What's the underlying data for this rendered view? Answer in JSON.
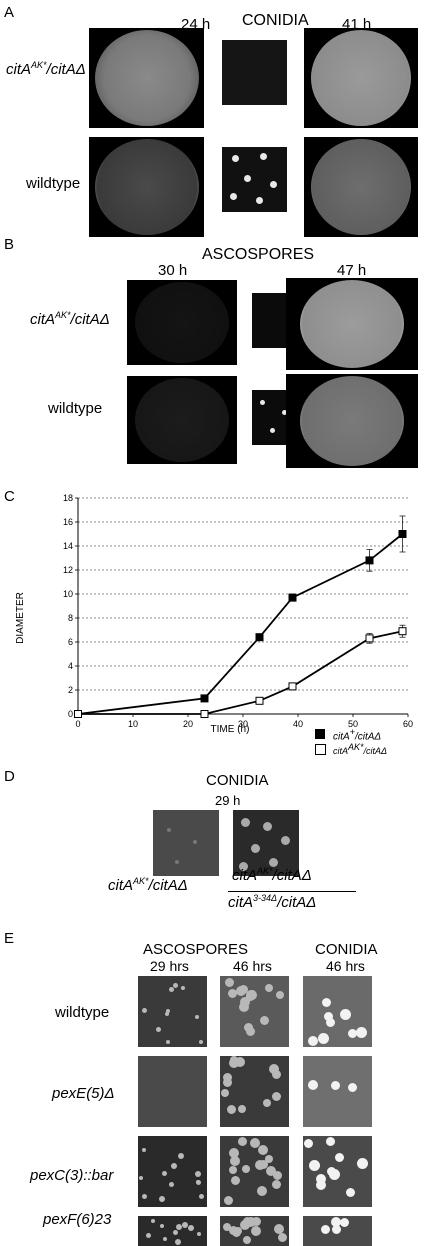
{
  "panelA": {
    "letter": "A",
    "title": "CONIDIA",
    "time_left": "24 h",
    "time_right": "41 h",
    "row1_label_main": "citA",
    "row1_label_sup": "AK*",
    "row1_label_tail": "/citAΔ",
    "row2_label": "wildtype"
  },
  "panelB": {
    "letter": "B",
    "title": "ASCOSPORES",
    "time_left": "30 h",
    "time_right": "47 h",
    "row1_label_main": "citA",
    "row1_label_sup": "AK*",
    "row1_label_tail": "/citAΔ",
    "row2_label": "wildtype"
  },
  "panelC": {
    "letter": "C"
  },
  "chart_data": {
    "type": "line",
    "xlabel": "TIME (h)",
    "ylabel": "DIAMETER",
    "xlim": [
      0,
      60
    ],
    "ylim": [
      0,
      18
    ],
    "xticks": [
      0,
      10,
      20,
      30,
      40,
      50,
      60
    ],
    "yticks": [
      0,
      2,
      4,
      6,
      8,
      10,
      12,
      14,
      16,
      18
    ],
    "grid": "horizontal dashed",
    "legend_position": "bottom-right",
    "series": [
      {
        "name": "citA+/citAΔ",
        "marker": "filled-square",
        "x": [
          0,
          23,
          33,
          39,
          53,
          59
        ],
        "y": [
          0,
          1.3,
          6.4,
          9.7,
          12.8,
          15.0
        ],
        "err": [
          0,
          0.2,
          0.2,
          0.3,
          0.9,
          1.5
        ]
      },
      {
        "name": "citAAK*/citAΔ",
        "marker": "open-square",
        "x": [
          0,
          23,
          33,
          39,
          53,
          59
        ],
        "y": [
          0,
          0,
          1.1,
          2.3,
          6.3,
          6.9
        ],
        "err": [
          0,
          0,
          0.1,
          0.2,
          0.4,
          0.5
        ]
      }
    ],
    "legend": {
      "entry1_main": "citA",
      "entry1_sup": "+",
      "entry1_tail": "/citAΔ",
      "entry2_main": "citA",
      "entry2_sup": "AK*",
      "entry2_tail": "/citAΔ"
    }
  },
  "panelD": {
    "letter": "D",
    "title": "CONIDIA",
    "time": "29 h",
    "left_label_main": "citA",
    "left_label_sup": "AK*",
    "left_label_tail": "/citAΔ",
    "num_main": "citA",
    "num_sup": "AK*",
    "num_tail": "/citAΔ",
    "den_main": "citA",
    "den_sup": "3-34Δ",
    "den_tail": "/citAΔ"
  },
  "panelE": {
    "letter": "E",
    "col_asco": "ASCOSPORES",
    "col_conidia": "CONIDIA",
    "t1": "29 hrs",
    "t2": "46 hrs",
    "t3": "46 hrs",
    "rows": [
      "wildtype",
      "pexE(5)Δ",
      "pexC(3)::bar",
      "pexF(6)23"
    ]
  }
}
